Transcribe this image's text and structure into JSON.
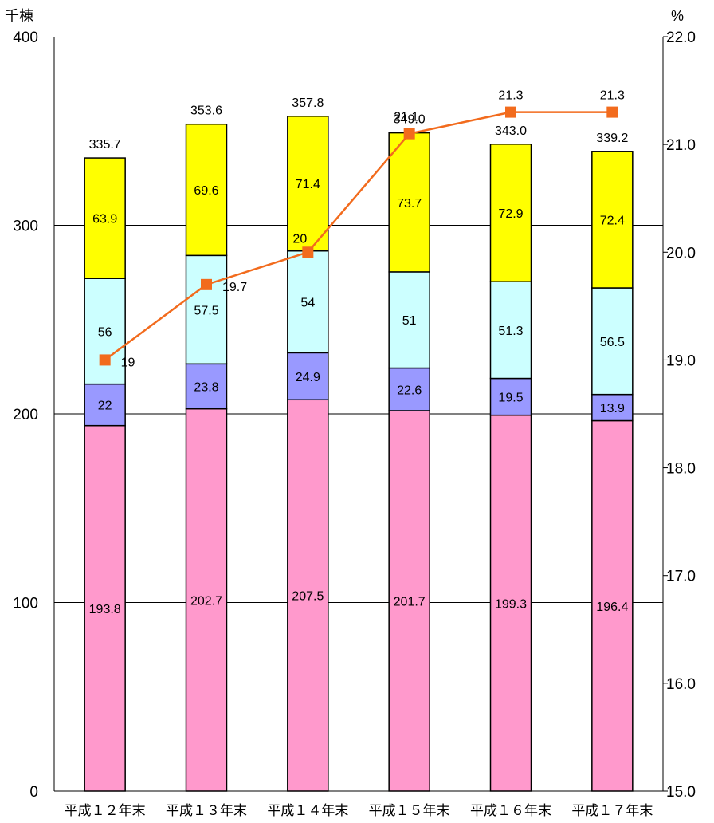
{
  "chart_data": {
    "type": "bar",
    "stacked": true,
    "left_unit": "千棟",
    "right_unit": "%",
    "categories": [
      "平成１２年末",
      "平成１３年末",
      "平成１４年末",
      "平成１５年末",
      "平成１６年末",
      "平成１７年末"
    ],
    "series": [
      {
        "color": "#ff99cc",
        "values": [
          193.8,
          202.7,
          207.5,
          201.7,
          199.3,
          196.4
        ]
      },
      {
        "color": "#9999ff",
        "values": [
          22.0,
          23.8,
          24.9,
          22.6,
          19.5,
          13.9
        ]
      },
      {
        "color": "#ccffff",
        "values": [
          56.0,
          57.5,
          54.0,
          51.0,
          51.3,
          56.5
        ]
      },
      {
        "color": "#ffff00",
        "values": [
          63.9,
          69.6,
          71.4,
          73.7,
          72.9,
          72.4
        ]
      }
    ],
    "totals": [
      "335.7",
      "353.6",
      "357.8",
      "349.0",
      "343.0",
      "339.2"
    ],
    "line": {
      "color": "#f26b1d",
      "axis": "right",
      "values": [
        19.0,
        19.7,
        20.0,
        21.1,
        21.3,
        21.3
      ]
    },
    "ylim_left": [
      0,
      400
    ],
    "yticks_left": [
      "0",
      "100",
      "200",
      "300",
      "400"
    ],
    "ylim_right": [
      15.0,
      22.0
    ],
    "yticks_right": [
      "15.0",
      "16.0",
      "17.0",
      "18.0",
      "19.0",
      "20.0",
      "21.0",
      "22.0"
    ],
    "grid": true
  }
}
